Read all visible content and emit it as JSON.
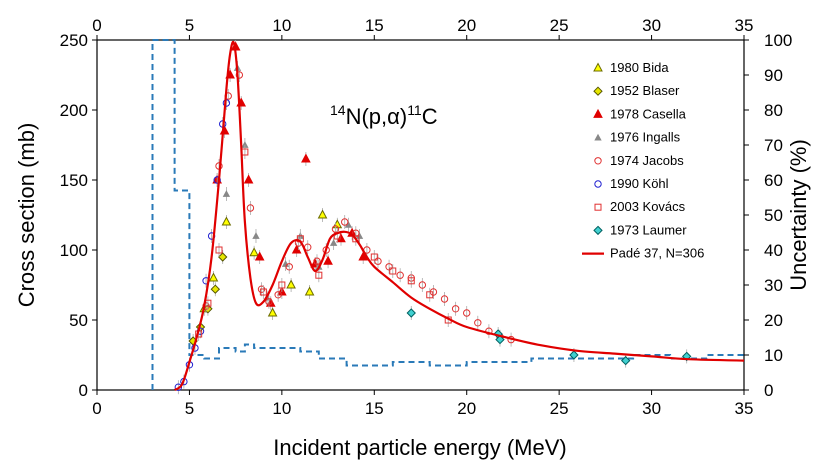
{
  "chart_data": {
    "type": "scatter",
    "title": "",
    "xlabel": "Incident particle energy (MeV)",
    "ylabel": "Cross section (mb)",
    "y2label": "Uncertainty (%)",
    "xlim": [
      0,
      35
    ],
    "ylim": [
      0,
      250
    ],
    "y2lim": [
      0,
      100
    ],
    "xticks": [
      "0",
      "5",
      "10",
      "15",
      "20",
      "25",
      "30",
      "35"
    ],
    "yticks": [
      "0",
      "50",
      "100",
      "150",
      "200",
      "250"
    ],
    "y2ticks": [
      "0",
      "10",
      "20",
      "30",
      "40",
      "50",
      "60",
      "70",
      "80",
      "90",
      "100"
    ],
    "annotation": {
      "pre": "14",
      "mid": "N(p,",
      "alpha": "α",
      "post": ")",
      "sup2": "11",
      "end": "C"
    },
    "legend_position": "right",
    "series": [
      {
        "name": "1980 Bida",
        "marker": "triangle",
        "color": "#6b6b00",
        "fill": "#ffff00",
        "points": [
          [
            5.8,
            58
          ],
          [
            6.3,
            80
          ],
          [
            7.0,
            120
          ],
          [
            8.5,
            98
          ],
          [
            9.5,
            55
          ],
          [
            10.5,
            75
          ],
          [
            11.5,
            70
          ],
          [
            12.2,
            125
          ],
          [
            13.0,
            118
          ]
        ]
      },
      {
        "name": "1952 Blaser",
        "marker": "diamond",
        "color": "#555500",
        "fill": "#e6e600",
        "points": [
          [
            5.2,
            35
          ],
          [
            5.6,
            45
          ],
          [
            6.0,
            58
          ],
          [
            6.4,
            72
          ],
          [
            6.8,
            95
          ]
        ]
      },
      {
        "name": "1978 Casella",
        "marker": "triangle",
        "color": "#e00000",
        "fill": "#e00000",
        "points": [
          [
            6.5,
            150
          ],
          [
            6.9,
            185
          ],
          [
            7.2,
            225
          ],
          [
            7.5,
            245
          ],
          [
            7.8,
            205
          ],
          [
            8.2,
            150
          ],
          [
            8.8,
            95
          ],
          [
            9.4,
            62
          ],
          [
            10.0,
            70
          ],
          [
            10.8,
            100
          ],
          [
            11.3,
            165
          ],
          [
            11.8,
            90
          ],
          [
            12.5,
            92
          ],
          [
            13.2,
            108
          ],
          [
            13.8,
            112
          ],
          [
            14.4,
            95
          ]
        ]
      },
      {
        "name": "1976 Ingalls",
        "marker": "triangle-small",
        "color": "#888888",
        "fill": "#888888",
        "points": [
          [
            7.0,
            140
          ],
          [
            7.6,
            230
          ],
          [
            8.0,
            175
          ],
          [
            8.6,
            110
          ],
          [
            9.2,
            66
          ],
          [
            10.2,
            90
          ],
          [
            11.0,
            110
          ],
          [
            12.0,
            88
          ],
          [
            12.8,
            105
          ],
          [
            13.6,
            118
          ],
          [
            14.2,
            110
          ]
        ]
      },
      {
        "name": "1974 Jacobs",
        "marker": "circle",
        "color": "#e03030",
        "fill": "none",
        "points": [
          [
            5.9,
            60
          ],
          [
            6.6,
            160
          ],
          [
            7.1,
            210
          ],
          [
            7.7,
            225
          ],
          [
            8.3,
            130
          ],
          [
            8.9,
            72
          ],
          [
            9.3,
            63
          ],
          [
            9.8,
            68
          ],
          [
            10.4,
            88
          ],
          [
            10.9,
            105
          ],
          [
            11.4,
            102
          ],
          [
            11.9,
            92
          ],
          [
            12.4,
            100
          ],
          [
            12.9,
            115
          ],
          [
            13.4,
            120
          ],
          [
            14.0,
            112
          ],
          [
            14.6,
            100
          ],
          [
            15.2,
            92
          ],
          [
            15.8,
            88
          ],
          [
            16.4,
            82
          ],
          [
            17.0,
            80
          ],
          [
            17.6,
            75
          ],
          [
            18.2,
            70
          ],
          [
            18.8,
            65
          ],
          [
            19.4,
            58
          ],
          [
            20.0,
            55
          ],
          [
            20.6,
            48
          ],
          [
            21.2,
            42
          ],
          [
            21.8,
            38
          ],
          [
            22.4,
            36
          ]
        ]
      },
      {
        "name": "1990 Köhl",
        "marker": "circle",
        "color": "#2020d0",
        "fill": "none",
        "points": [
          [
            4.4,
            2
          ],
          [
            4.7,
            6
          ],
          [
            5.0,
            18
          ],
          [
            5.3,
            30
          ],
          [
            5.6,
            42
          ],
          [
            5.9,
            78
          ],
          [
            6.2,
            110
          ],
          [
            6.5,
            150
          ],
          [
            6.8,
            190
          ],
          [
            7.0,
            205
          ]
        ]
      },
      {
        "name": "2003 Kovács",
        "marker": "square",
        "color": "#e03030",
        "fill": "none",
        "points": [
          [
            5.5,
            40
          ],
          [
            6.0,
            62
          ],
          [
            6.6,
            100
          ],
          [
            8.0,
            170
          ],
          [
            9.0,
            70
          ],
          [
            10.0,
            75
          ],
          [
            11.0,
            108
          ],
          [
            12.0,
            82
          ],
          [
            13.0,
            110
          ],
          [
            14.0,
            108
          ],
          [
            15.0,
            95
          ],
          [
            16.0,
            85
          ],
          [
            17.0,
            78
          ],
          [
            18.0,
            68
          ],
          [
            19.0,
            50
          ]
        ]
      },
      {
        "name": "1973 Laumer",
        "marker": "diamond",
        "color": "#006060",
        "fill": "#40d0d0",
        "points": [
          [
            17.0,
            55
          ],
          [
            21.7,
            40
          ],
          [
            21.8,
            36
          ],
          [
            25.8,
            25
          ],
          [
            28.6,
            21
          ],
          [
            31.9,
            24
          ]
        ]
      }
    ],
    "fit": {
      "name": "Padé 37, N=306",
      "color": "#e00000",
      "x": [
        4.2,
        4.6,
        5.0,
        5.4,
        5.8,
        6.2,
        6.6,
        7.0,
        7.2,
        7.4,
        7.6,
        7.8,
        8.0,
        8.3,
        8.6,
        9.0,
        9.5,
        10.0,
        10.5,
        11.0,
        11.4,
        11.8,
        12.2,
        12.6,
        13.0,
        13.4,
        13.8,
        14.2,
        14.6,
        15.0,
        16.0,
        17.0,
        18.0,
        19.0,
        20.0,
        22.0,
        24.0,
        26.0,
        28.0,
        30.0,
        32.0,
        35.0
      ],
      "y": [
        0,
        4,
        20,
        38,
        60,
        95,
        150,
        215,
        240,
        248,
        225,
        175,
        120,
        80,
        62,
        63,
        75,
        92,
        105,
        106,
        95,
        85,
        93,
        108,
        112,
        113,
        111,
        104,
        95,
        88,
        77,
        66,
        58,
        51,
        45,
        38,
        32,
        28,
        26,
        24,
        22,
        21
      ]
    },
    "uncertainty": {
      "name": "Uncertainty (%)",
      "color": "#2a7ab8",
      "style": "dashed",
      "x": [
        3.0,
        3.0,
        3.0,
        3.0,
        4.2,
        4.2,
        5.0,
        5.0,
        5.8,
        5.8,
        6.6,
        6.6,
        7.5,
        7.5,
        8.0,
        8.0,
        8.5,
        8.5,
        10.0,
        10.0,
        11.0,
        11.0,
        12.0,
        12.0,
        13.5,
        13.5,
        16.0,
        16.0,
        18.0,
        18.0,
        20.0,
        20.0,
        22.0,
        22.0,
        23.5,
        23.5,
        25.0,
        25.0,
        27.0,
        27.0,
        29.0,
        29.0,
        31.0,
        31.0,
        33.0,
        33.0,
        35.0
      ],
      "y": [
        0,
        100,
        100,
        100,
        100,
        57,
        57,
        10,
        10,
        9,
        9,
        12,
        12,
        11,
        11,
        13,
        13,
        12,
        12,
        12,
        12,
        11,
        11,
        9,
        9,
        7,
        7,
        8,
        8,
        7,
        7,
        8,
        8,
        8,
        8,
        9,
        9,
        9,
        9,
        9,
        9,
        10,
        10,
        9,
        9,
        10,
        10
      ]
    },
    "legend": [
      {
        "label": "1980 Bida"
      },
      {
        "label": "1952 Blaser"
      },
      {
        "label": "1978 Casella"
      },
      {
        "label": "1976 Ingalls"
      },
      {
        "label": "1974 Jacobs"
      },
      {
        "label": "1990 Köhl"
      },
      {
        "label": "2003 Kovács"
      },
      {
        "label": "1973 Laumer"
      },
      {
        "label": "Padé 37, N=306"
      }
    ]
  }
}
